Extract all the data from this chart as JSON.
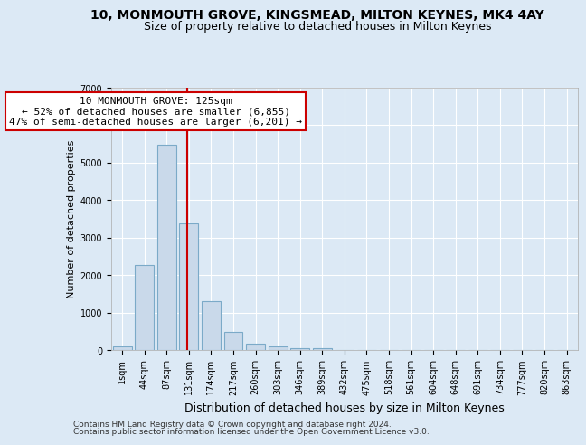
{
  "title": "10, MONMOUTH GROVE, KINGSMEAD, MILTON KEYNES, MK4 4AY",
  "subtitle": "Size of property relative to detached houses in Milton Keynes",
  "xlabel": "Distribution of detached houses by size in Milton Keynes",
  "ylabel": "Number of detached properties",
  "footnote1": "Contains HM Land Registry data © Crown copyright and database right 2024.",
  "footnote2": "Contains public sector information licensed under the Open Government Licence v3.0.",
  "bar_labels": [
    "1sqm",
    "44sqm",
    "87sqm",
    "131sqm",
    "174sqm",
    "217sqm",
    "260sqm",
    "303sqm",
    "346sqm",
    "389sqm",
    "432sqm",
    "475sqm",
    "518sqm",
    "561sqm",
    "604sqm",
    "648sqm",
    "691sqm",
    "734sqm",
    "777sqm",
    "820sqm",
    "863sqm"
  ],
  "bar_values": [
    100,
    2270,
    5480,
    3380,
    1310,
    490,
    175,
    90,
    60,
    50,
    0,
    0,
    0,
    0,
    0,
    0,
    0,
    0,
    0,
    0,
    0
  ],
  "bar_color": "#c9d9ea",
  "bar_edgecolor": "#7baac8",
  "annotation_text": "10 MONMOUTH GROVE: 125sqm\n← 52% of detached houses are smaller (6,855)\n47% of semi-detached houses are larger (6,201) →",
  "vline_color": "#cc0000",
  "vline_x": 2.93,
  "ylim": [
    0,
    7000
  ],
  "bg_color": "#dce9f5",
  "grid_color": "#ffffff",
  "title_fontsize": 10,
  "subtitle_fontsize": 9,
  "xlabel_fontsize": 9,
  "ylabel_fontsize": 8,
  "annotation_fontsize": 8,
  "tick_fontsize": 7,
  "footnote_fontsize": 6.5
}
